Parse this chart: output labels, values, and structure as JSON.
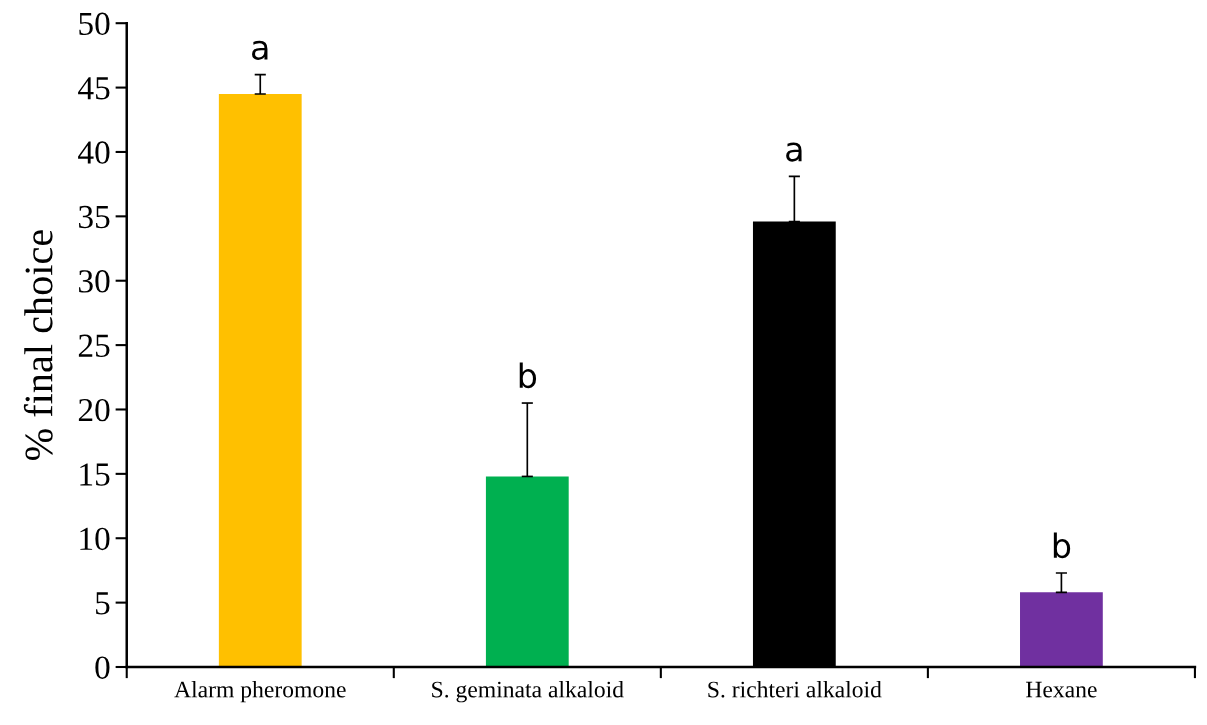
{
  "chart_data": {
    "type": "bar",
    "ylabel": "% final choice",
    "categories": [
      "Alarm pheromone",
      "S. geminata alkaloid",
      "S. richteri alkaloid",
      "Hexane"
    ],
    "values": [
      44.5,
      14.8,
      34.6,
      5.8
    ],
    "colors": [
      "#ffc000",
      "#00b050",
      "#000000",
      "#7030a0"
    ],
    "errors": [
      [
        44.5,
        46.0
      ],
      [
        14.8,
        20.5
      ],
      [
        34.6,
        38.1
      ],
      [
        5.8,
        7.3
      ]
    ],
    "ylim": [
      0,
      50
    ],
    "yticks": [
      0,
      5,
      10,
      15,
      20,
      25,
      30,
      35,
      40,
      45,
      50
    ],
    "grid": false,
    "annotations": [
      {
        "text": "a",
        "x": "Alarm pheromone",
        "y": 46.0
      },
      {
        "text": "b",
        "x": "S. geminata alkaloid",
        "y": 20.5
      },
      {
        "text": "a",
        "x": "S. richteri alkaloid",
        "y": 38.1
      },
      {
        "text": "b",
        "x": "Hexane",
        "y": 7.3
      }
    ]
  }
}
